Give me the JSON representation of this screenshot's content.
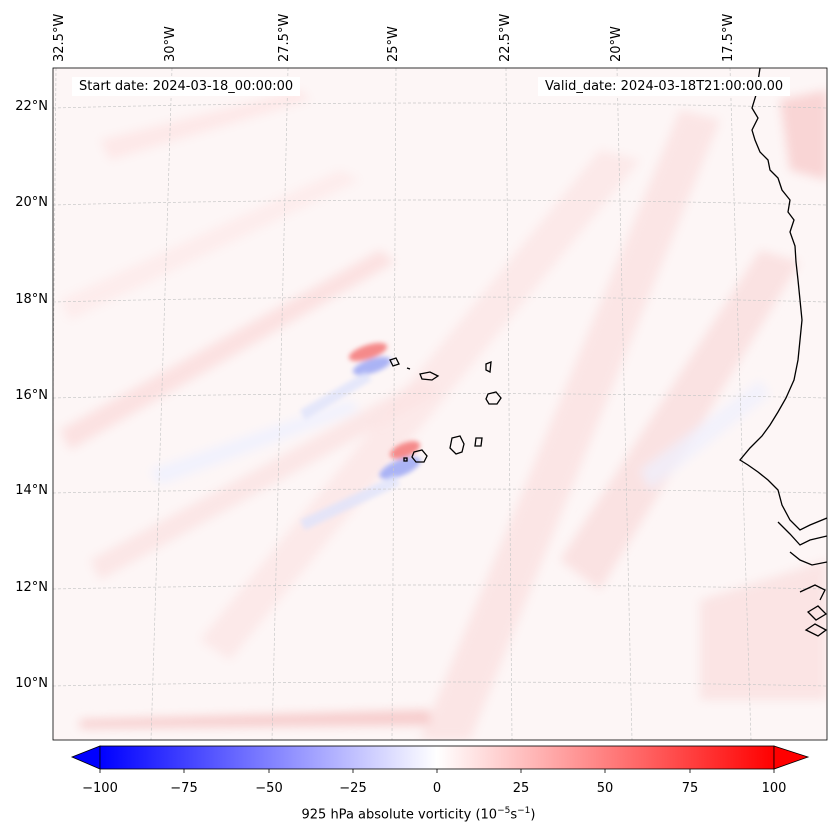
{
  "map": {
    "start_date": "Start date: 2024-03-18_00:00:00",
    "valid_date": "Valid_date: 2024-03-18T21:00:00.00",
    "lon_labels": [
      "32.5°W",
      "30°W",
      "27.5°W",
      "25°W",
      "22.5°W",
      "20°W",
      "17.5°W"
    ],
    "lat_labels": [
      "22°N",
      "20°N",
      "18°N",
      "16°N",
      "14°N",
      "12°N",
      "10°N"
    ],
    "gridlines": "dashed-gray"
  },
  "colorbar": {
    "ticks": [
      "−100",
      "−75",
      "−50",
      "−25",
      "0",
      "25",
      "50",
      "75",
      "100"
    ],
    "min": -100,
    "max": 100,
    "label_text": "925 hPa absolute vorticity (10",
    "label_exp1": "−5",
    "label_mid": "s",
    "label_exp2": "−1",
    "label_end": ")",
    "neg_color": "#0000ff",
    "pos_color": "#ff0000"
  }
}
